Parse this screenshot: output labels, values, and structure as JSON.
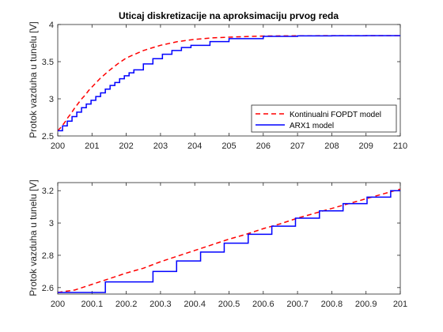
{
  "colors": {
    "fopdt": "#ff0000",
    "arx": "#0000ff",
    "axis": "#262626",
    "background": "#ffffff"
  },
  "chart_data": [
    {
      "type": "line",
      "title": "Uticaj diskretizacije na aproksimaciju prvog reda",
      "xlabel": "",
      "ylabel": "Protok vazduha u tunelu [V]",
      "xlim": [
        200,
        210
      ],
      "ylim": [
        2.5,
        4
      ],
      "xticks": [
        "200",
        "201",
        "202",
        "203",
        "204",
        "205",
        "206",
        "207",
        "208",
        "209",
        "210"
      ],
      "yticks": [
        "2.5",
        "3",
        "3.5",
        "4"
      ],
      "grid": false,
      "legend_position": "bottom-right",
      "series": [
        {
          "name": "Kontinualni FOPDT model",
          "style": "dashed",
          "x": [
            200,
            200.1,
            200.2,
            200.3,
            200.4,
            200.5,
            200.6,
            200.7,
            200.8,
            200.9,
            201,
            201.25,
            201.5,
            201.75,
            202,
            202.5,
            203,
            203.5,
            204,
            204.5,
            205,
            206,
            207,
            208,
            209,
            210
          ],
          "y": [
            2.57,
            2.62,
            2.68,
            2.75,
            2.81,
            2.88,
            2.94,
            3.0,
            3.05,
            3.11,
            3.16,
            3.28,
            3.38,
            3.47,
            3.55,
            3.65,
            3.72,
            3.77,
            3.8,
            3.82,
            3.83,
            3.845,
            3.848,
            3.85,
            3.85,
            3.85
          ]
        },
        {
          "name": "ARX1 model",
          "style": "step",
          "x": [
            200,
            200.139,
            200.278,
            200.417,
            200.556,
            200.694,
            200.833,
            200.972,
            201.111,
            201.25,
            201.389,
            201.528,
            201.667,
            201.806,
            201.944,
            202.083,
            202.222,
            202.5,
            202.778,
            203.056,
            203.333,
            203.611,
            203.889,
            204.444,
            205,
            206,
            207,
            208,
            209,
            210
          ],
          "y": [
            2.57,
            2.635,
            2.7,
            2.76,
            2.82,
            2.88,
            2.93,
            2.98,
            3.03,
            3.08,
            3.13,
            3.18,
            3.22,
            3.27,
            3.31,
            3.35,
            3.39,
            3.47,
            3.54,
            3.6,
            3.65,
            3.69,
            3.72,
            3.77,
            3.81,
            3.84,
            3.847,
            3.849,
            3.85,
            3.85
          ]
        }
      ]
    },
    {
      "type": "line",
      "title": "",
      "xlabel": "",
      "ylabel": "Protok vazduha u tunelu [V]",
      "xlim": [
        200,
        201
      ],
      "ylim": [
        2.56,
        3.25
      ],
      "xticks": [
        "200",
        "200.1",
        "200.2",
        "200.3",
        "200.4",
        "200.5",
        "200.6",
        "200.7",
        "200.8",
        "200.9",
        "201"
      ],
      "yticks": [
        "2.6",
        "2.8",
        "3",
        "3.2"
      ],
      "grid": false,
      "series": [
        {
          "name": "Kontinualni FOPDT model",
          "style": "dashed",
          "x": [
            200,
            200.05,
            200.1,
            200.15,
            200.2,
            200.25,
            200.3,
            200.35,
            200.4,
            200.45,
            200.5,
            200.55,
            200.6,
            200.65,
            200.7,
            200.75,
            200.8,
            200.85,
            200.9,
            200.95,
            201
          ],
          "y": [
            2.57,
            2.585,
            2.62,
            2.655,
            2.69,
            2.72,
            2.76,
            2.795,
            2.83,
            2.865,
            2.9,
            2.93,
            2.965,
            2.995,
            3.03,
            3.06,
            3.09,
            3.12,
            3.15,
            3.18,
            3.21
          ]
        },
        {
          "name": "ARX1 model",
          "style": "step",
          "x": [
            200,
            200.069,
            200.139,
            200.208,
            200.278,
            200.347,
            200.417,
            200.486,
            200.556,
            200.625,
            200.694,
            200.764,
            200.833,
            200.903,
            200.972,
            201
          ],
          "y": [
            2.57,
            2.57,
            2.635,
            2.635,
            2.7,
            2.765,
            2.82,
            2.875,
            2.93,
            2.98,
            3.03,
            3.075,
            3.12,
            3.16,
            3.2,
            3.2
          ]
        }
      ]
    }
  ]
}
